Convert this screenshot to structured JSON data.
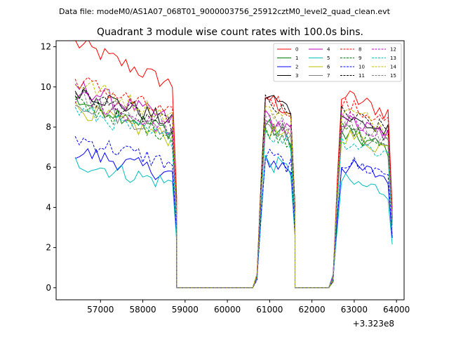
{
  "header": {
    "data_file": "Data file: modeM0/AS1A07_068T01_9000003756_25912cztM0_level2_quad_clean.evt"
  },
  "chart_data": {
    "type": "line",
    "title": "Quadrant 3 module wise count rates with 100.0s bins.",
    "xlabel": "",
    "ylabel": "",
    "x_offset_label": "+3.323e8",
    "xlim": [
      55950,
      64180
    ],
    "ylim": [
      -0.6,
      12.3
    ],
    "x_ticks": [
      57000,
      58000,
      59000,
      60000,
      61000,
      62000,
      63000,
      64000
    ],
    "x_tick_labels": [
      "57000",
      "58000",
      "59000",
      "60000",
      "61000",
      "62000",
      "63000",
      "64000"
    ],
    "y_ticks": [
      0,
      2,
      4,
      6,
      8,
      10,
      12
    ],
    "y_tick_labels": [
      "0",
      "2",
      "4",
      "6",
      "8",
      "10",
      "12"
    ],
    "legend_position": "top-right",
    "legend_columns": 4,
    "bin_width": 100,
    "segments": [
      {
        "start": 56400,
        "end": 58800,
        "rise": 0
      },
      {
        "start": 60700,
        "end": 61600,
        "rise": 2
      },
      {
        "start": 62500,
        "end": 63850,
        "rise": 2
      }
    ],
    "series": [
      {
        "name": "0",
        "color": "#ff0000",
        "dash": "solid",
        "levels": [
          11.3,
          9.8,
          9.8
        ]
      },
      {
        "name": "1",
        "color": "#008000",
        "dash": "solid",
        "levels": [
          8.7,
          8.3,
          7.8
        ]
      },
      {
        "name": "2",
        "color": "#0000ff",
        "dash": "solid",
        "levels": [
          6.3,
          6.6,
          6.2
        ]
      },
      {
        "name": "3",
        "color": "#000000",
        "dash": "solid",
        "levels": [
          9.2,
          9.9,
          8.7
        ]
      },
      {
        "name": "4",
        "color": "#bf00bf",
        "dash": "solid",
        "levels": [
          9.3,
          8.7,
          8.5
        ]
      },
      {
        "name": "5",
        "color": "#00bfbf",
        "dash": "solid",
        "levels": [
          5.8,
          6.5,
          5.4
        ]
      },
      {
        "name": "6",
        "color": "#bfbf00",
        "dash": "solid",
        "levels": [
          8.3,
          8.2,
          7.8
        ]
      },
      {
        "name": "7",
        "color": "#808080",
        "dash": "solid",
        "levels": [
          8.6,
          8.5,
          8.0
        ]
      },
      {
        "name": "8",
        "color": "#ff0000",
        "dash": "dashed",
        "levels": [
          9.6,
          9.9,
          9.3
        ]
      },
      {
        "name": "9",
        "color": "#008000",
        "dash": "dashed",
        "levels": [
          8.5,
          8.2,
          8.0
        ]
      },
      {
        "name": "10",
        "color": "#0000ff",
        "dash": "dashed",
        "levels": [
          6.9,
          6.8,
          6.4
        ]
      },
      {
        "name": "11",
        "color": "#000000",
        "dash": "dashed",
        "levels": [
          9.0,
          9.5,
          8.8
        ]
      },
      {
        "name": "12",
        "color": "#bf00bf",
        "dash": "dashed",
        "levels": [
          8.8,
          8.7,
          8.6
        ]
      },
      {
        "name": "13",
        "color": "#00bfbf",
        "dash": "dashed",
        "levels": [
          8.2,
          8.0,
          7.5
        ]
      },
      {
        "name": "14",
        "color": "#bfbf00",
        "dash": "dashed",
        "levels": [
          9.5,
          9.3,
          9.0
        ]
      },
      {
        "name": "15",
        "color": "#808080",
        "dash": "dashed",
        "levels": [
          9.0,
          8.8,
          8.4
        ]
      }
    ]
  }
}
